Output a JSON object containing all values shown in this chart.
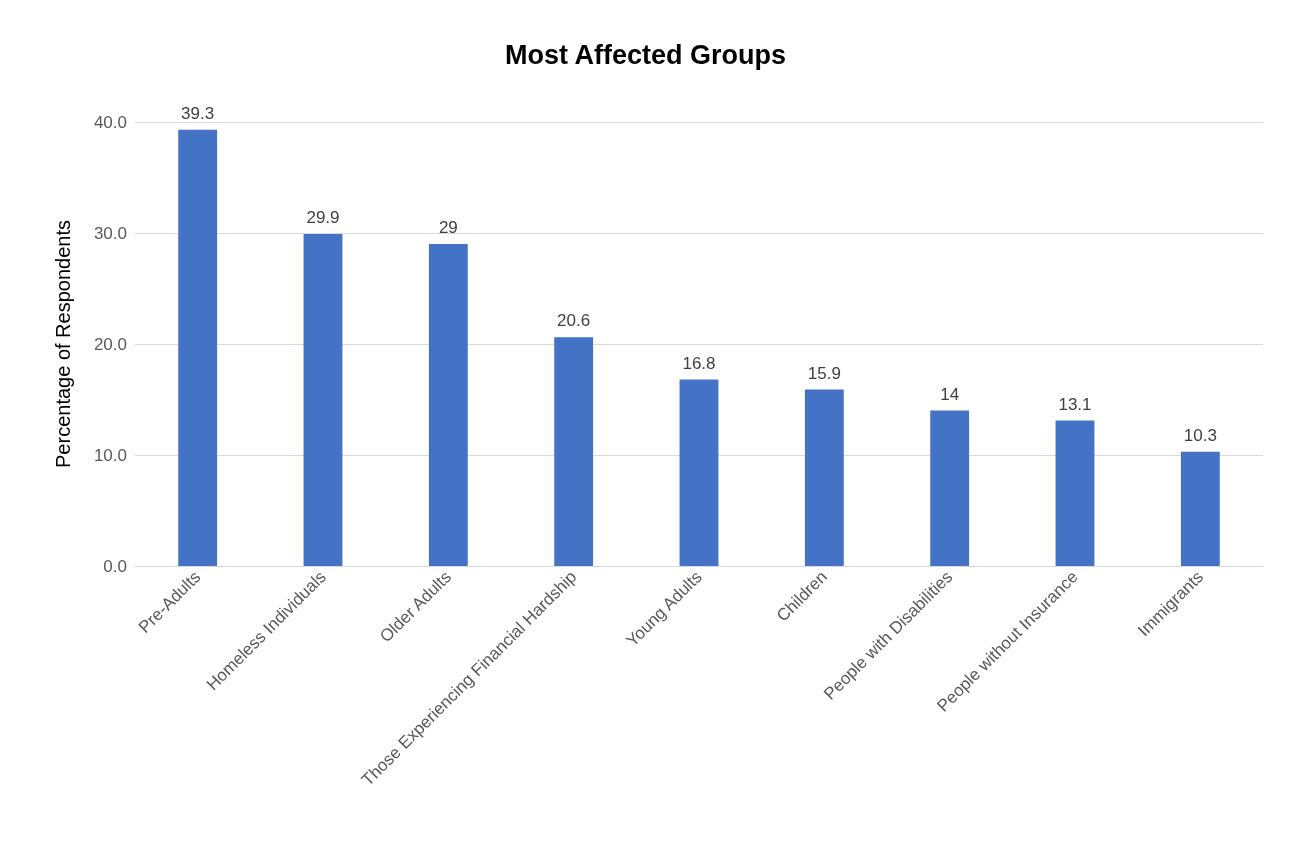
{
  "chart_data": {
    "type": "bar",
    "title": "Most Affected Groups",
    "ylabel": "Percentage of Respondents",
    "categories": [
      "Pre-Adults",
      "Homeless Individuals",
      "Older Adults",
      "Those Experiencing Financial Hardship",
      "Young Adults",
      "Children",
      "People with Disabilities",
      "People without Insurance",
      "Immigrants"
    ],
    "values": [
      39.3,
      29.9,
      29,
      20.6,
      16.8,
      15.9,
      14,
      13.1,
      10.3
    ],
    "color": "#4472c4",
    "ylim": [
      0,
      40
    ],
    "yticks": [
      {
        "value": 0,
        "label": "0.0"
      },
      {
        "value": 10,
        "label": "10.0"
      },
      {
        "value": 20,
        "label": "20.0"
      },
      {
        "value": 30,
        "label": "30.0"
      },
      {
        "value": 40,
        "label": "40.0"
      }
    ],
    "grid": "y",
    "data_labels": true
  }
}
